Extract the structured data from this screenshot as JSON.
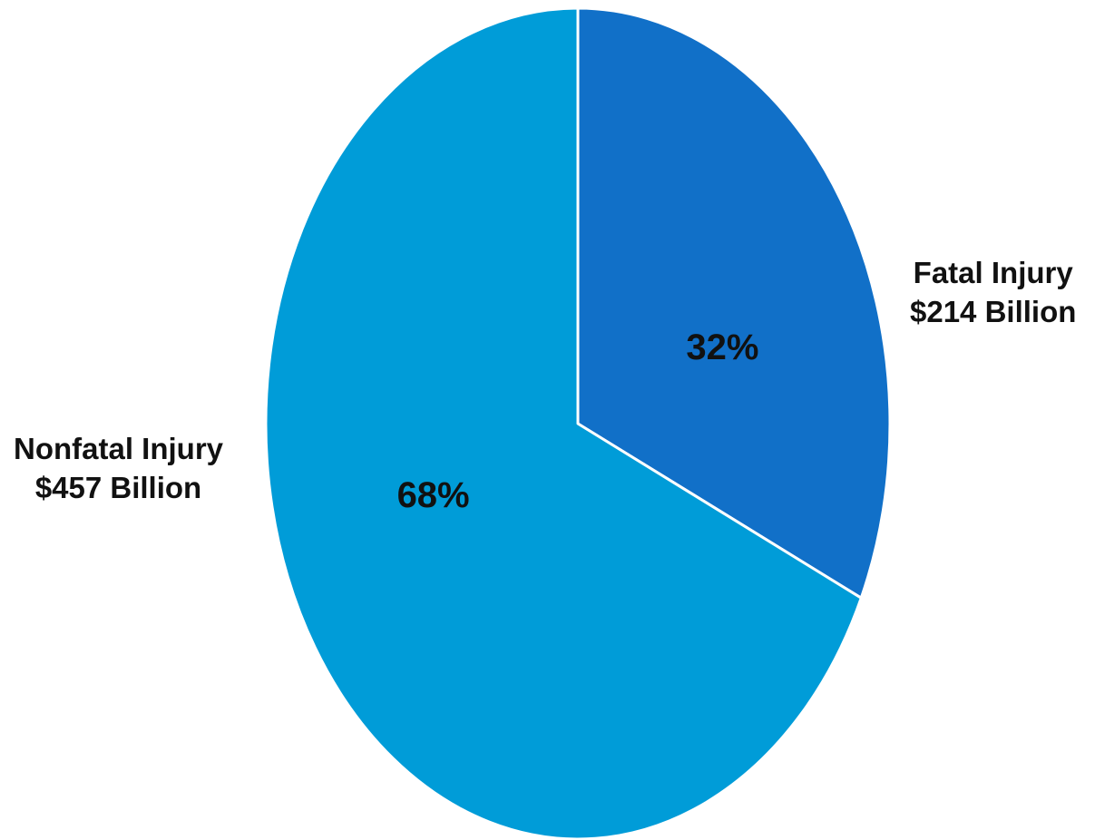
{
  "chart_data": {
    "type": "pie",
    "title": "",
    "slices": [
      {
        "name": "Fatal Injury",
        "amount_label": "$214 Billion",
        "value": 214,
        "percent": 32,
        "percent_label": "32%",
        "color": "#1170C8"
      },
      {
        "name": "Nonfatal Injury",
        "amount_label": "$457 Billion",
        "value": 457,
        "percent": 68,
        "percent_label": "68%",
        "color": "#009CD8"
      }
    ],
    "legend": "none",
    "start_angle": "12 o'clock",
    "direction": "clockwise",
    "slice_border_color": "#FFFFFF"
  }
}
